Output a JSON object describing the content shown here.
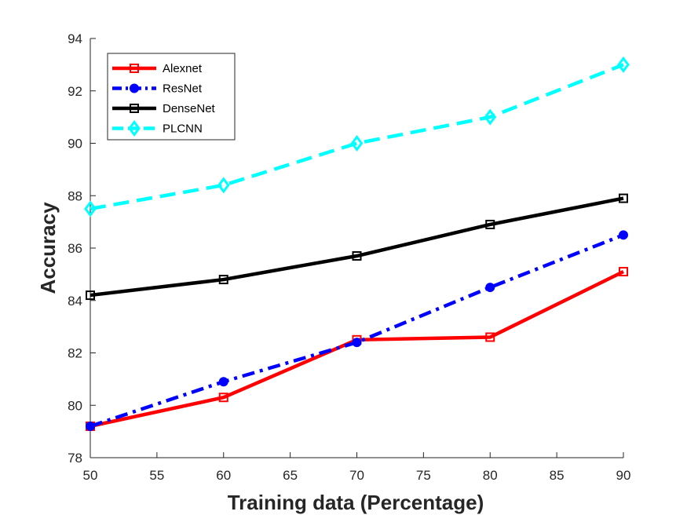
{
  "chart_data": {
    "type": "line",
    "title": "",
    "xlabel": "Training data (Percentage)",
    "ylabel": "Accuracy",
    "xlim": [
      50,
      90
    ],
    "ylim": [
      78,
      94
    ],
    "xticks": [
      50,
      55,
      60,
      65,
      70,
      75,
      80,
      85,
      90
    ],
    "yticks": [
      78,
      80,
      82,
      84,
      86,
      88,
      90,
      92,
      94
    ],
    "grid": false,
    "legend_position": "top-left",
    "x": [
      50,
      60,
      70,
      80,
      90
    ],
    "series": [
      {
        "name": "Alexnet",
        "values": [
          79.2,
          80.3,
          82.5,
          82.6,
          85.1
        ],
        "color": "#ff0000",
        "dash": "solid",
        "marker": "square"
      },
      {
        "name": "ResNet",
        "values": [
          79.2,
          80.9,
          82.4,
          84.5,
          86.5
        ],
        "color": "#0000ff",
        "dash": "dashdot",
        "marker": "circle"
      },
      {
        "name": "DenseNet",
        "values": [
          84.2,
          84.8,
          85.7,
          86.9,
          87.9
        ],
        "color": "#000000",
        "dash": "solid",
        "marker": "square"
      },
      {
        "name": "PLCNN",
        "values": [
          87.5,
          88.4,
          90.0,
          91.0,
          93.0
        ],
        "color": "#00ffff",
        "dash": "dashed",
        "marker": "diamond"
      }
    ]
  }
}
